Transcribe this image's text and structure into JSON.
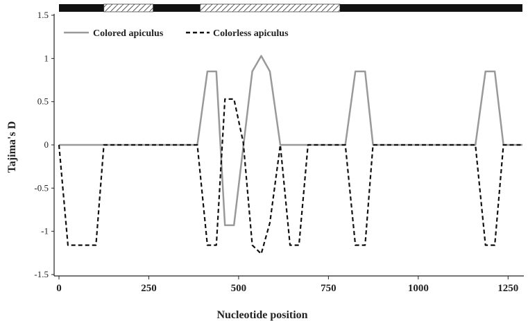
{
  "chart_data": {
    "type": "line",
    "xlabel": "Nucleotide position",
    "ylabel": "Tajima's D",
    "xlim": [
      0,
      1290
    ],
    "ylim": [
      -1.5,
      1.5
    ],
    "x_ticks": [
      "0",
      "250",
      "500",
      "750",
      "1000",
      "1250"
    ],
    "y_ticks": [
      "-1.5",
      "-1",
      "-0.5",
      "0",
      "0.5",
      "1",
      "1.5"
    ],
    "grid": false,
    "legend_position": "top-left",
    "colors": {
      "colored": "#999999",
      "colorless": "#111111",
      "bar_solid": "#111111"
    },
    "top_bar": {
      "segments": [
        {
          "start": 0,
          "end": 125,
          "pattern": "solid"
        },
        {
          "start": 125,
          "end": 262,
          "pattern": "hatched"
        },
        {
          "start": 262,
          "end": 393,
          "pattern": "solid"
        },
        {
          "start": 393,
          "end": 782,
          "pattern": "hatched"
        },
        {
          "start": 782,
          "end": 1290,
          "pattern": "solid"
        }
      ]
    },
    "series": [
      {
        "name": "Colored apiculus",
        "style": "solid",
        "x": [
          0,
          385,
          413,
          438,
          462,
          487,
          538,
          563,
          587,
          616,
          797,
          825,
          852,
          874,
          1159,
          1187,
          1213,
          1237,
          1290
        ],
        "y": [
          0,
          0,
          0.85,
          0.85,
          -0.93,
          -0.93,
          0.85,
          1.03,
          0.85,
          0,
          0,
          0.85,
          0.85,
          0,
          0,
          0.85,
          0.85,
          0,
          0
        ]
      },
      {
        "name": "Colorless apiculus",
        "style": "dashed",
        "x": [
          0,
          25,
          103,
          125,
          385,
          413,
          438,
          462,
          487,
          513,
          538,
          563,
          587,
          616,
          643,
          668,
          693,
          797,
          825,
          852,
          874,
          1159,
          1187,
          1213,
          1237,
          1290
        ],
        "y": [
          0,
          -1.16,
          -1.16,
          0,
          0,
          -1.16,
          -1.16,
          0.53,
          0.53,
          0.03,
          -1.16,
          -1.26,
          -0.9,
          0,
          -1.16,
          -1.16,
          0,
          0,
          -1.16,
          -1.16,
          0,
          0,
          -1.16,
          -1.16,
          0,
          0
        ]
      }
    ]
  }
}
